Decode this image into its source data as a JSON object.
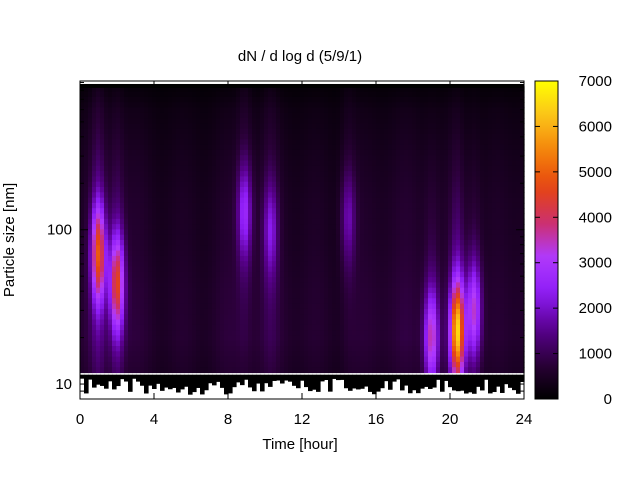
{
  "chart_data": {
    "type": "heatmap",
    "title": "dN / d log d (5/9/1)",
    "xlabel": "Time [hour]",
    "ylabel": "Particle size [nm]",
    "x_range": [
      0,
      24
    ],
    "x_ticks": [
      0,
      4,
      8,
      12,
      16,
      20,
      24
    ],
    "y_scale": "log",
    "y_range_nm": [
      8,
      920
    ],
    "y_ticks": [
      10,
      100
    ],
    "colorbar": {
      "range": [
        0,
        7000
      ],
      "ticks": [
        0,
        1000,
        2000,
        3000,
        4000,
        5000,
        6000,
        7000
      ],
      "palette": [
        "#000000",
        "#2a0038",
        "#5a0090",
        "#8e1cf5",
        "#b03aff",
        "#cc2f6c",
        "#e64510",
        "#f4820a",
        "#fbc21a",
        "#ffff00"
      ]
    },
    "background_level_by_size": [
      {
        "size_nm": 12,
        "value": 650
      },
      {
        "size_nm": 20,
        "value": 800
      },
      {
        "size_nm": 40,
        "value": 750
      },
      {
        "size_nm": 80,
        "value": 650
      },
      {
        "size_nm": 150,
        "value": 600
      },
      {
        "size_nm": 300,
        "value": 480
      },
      {
        "size_nm": 600,
        "value": 320
      },
      {
        "size_nm": 800,
        "value": 150
      }
    ],
    "features": [
      {
        "time_h": 1.0,
        "size_nm": 70,
        "peak": 3400
      },
      {
        "time_h": 2.0,
        "size_nm": 45,
        "peak": 3200
      },
      {
        "time_h": 8.9,
        "size_nm": 130,
        "peak": 1700
      },
      {
        "time_h": 10.3,
        "size_nm": 100,
        "peak": 1300
      },
      {
        "time_h": 14.5,
        "size_nm": 120,
        "peak": 1100
      },
      {
        "time_h": 19.0,
        "size_nm": 20,
        "peak": 2400
      },
      {
        "time_h": 20.4,
        "size_nm": 22,
        "peak": 4700
      },
      {
        "time_h": 21.3,
        "size_nm": 30,
        "peak": 2300
      }
    ],
    "grid": false,
    "legend": "none"
  }
}
